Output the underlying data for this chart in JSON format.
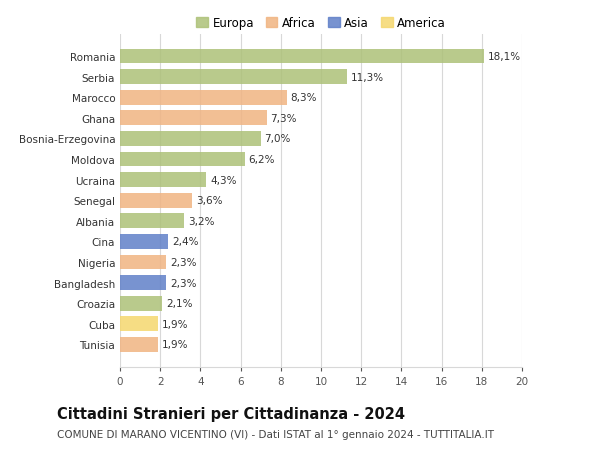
{
  "countries": [
    "Romania",
    "Serbia",
    "Marocco",
    "Ghana",
    "Bosnia-Erzegovina",
    "Moldova",
    "Ucraina",
    "Senegal",
    "Albania",
    "Cina",
    "Nigeria",
    "Bangladesh",
    "Croazia",
    "Cuba",
    "Tunisia"
  ],
  "values": [
    18.1,
    11.3,
    8.3,
    7.3,
    7.0,
    6.2,
    4.3,
    3.6,
    3.2,
    2.4,
    2.3,
    2.3,
    2.1,
    1.9,
    1.9
  ],
  "continents": [
    "Europa",
    "Europa",
    "Africa",
    "Africa",
    "Europa",
    "Europa",
    "Europa",
    "Africa",
    "Europa",
    "Asia",
    "Africa",
    "Asia",
    "Europa",
    "America",
    "Africa"
  ],
  "colors": {
    "Europa": "#adc178",
    "Africa": "#f0b482",
    "Asia": "#6080c8",
    "America": "#f5d76e"
  },
  "xlim": [
    0,
    20
  ],
  "xticks": [
    0,
    2,
    4,
    6,
    8,
    10,
    12,
    14,
    16,
    18,
    20
  ],
  "title": "Cittadini Stranieri per Cittadinanza - 2024",
  "subtitle": "COMUNE DI MARANO VICENTINO (VI) - Dati ISTAT al 1° gennaio 2024 - TUTTITALIA.IT",
  "background_color": "#ffffff",
  "grid_color": "#d8d8d8",
  "bar_height": 0.72,
  "label_fontsize": 7.5,
  "title_fontsize": 10.5,
  "subtitle_fontsize": 7.5,
  "tick_fontsize": 7.5,
  "legend_fontsize": 8.5,
  "legend_order": [
    "Europa",
    "Africa",
    "Asia",
    "America"
  ]
}
